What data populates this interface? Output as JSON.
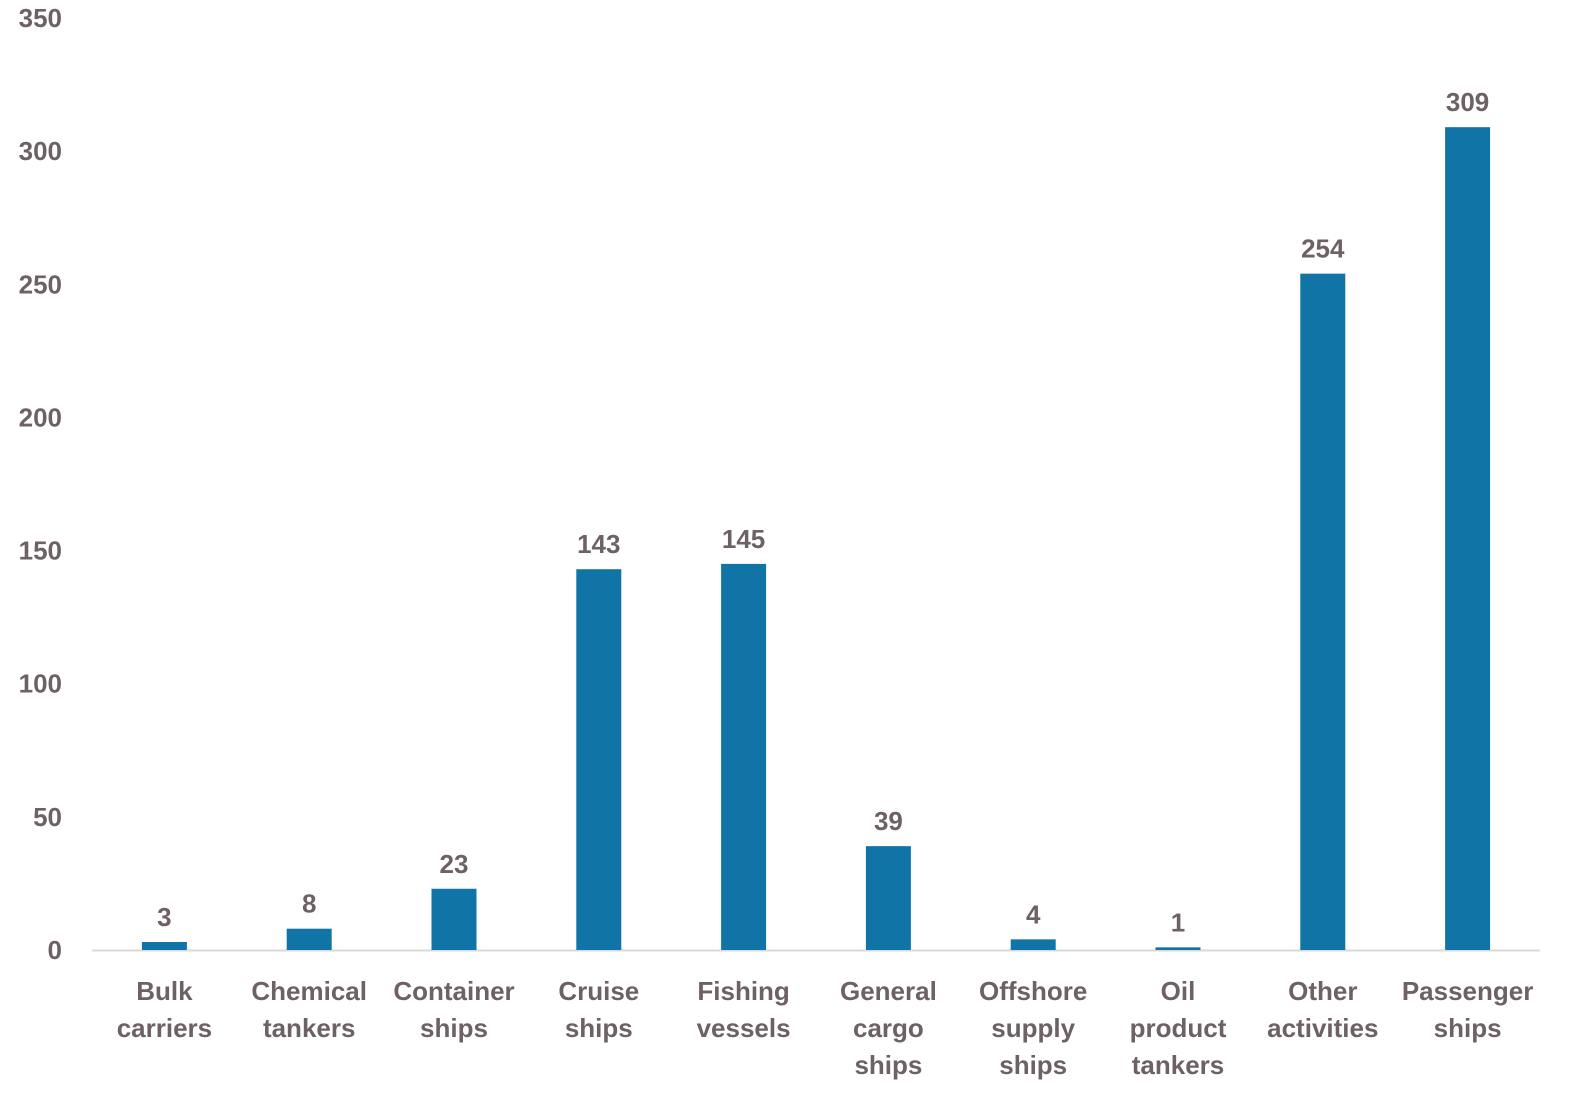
{
  "chart_data": {
    "type": "bar",
    "title": "",
    "xlabel": "",
    "ylabel": "",
    "ylim": [
      0,
      350
    ],
    "yticks": [
      0,
      50,
      100,
      150,
      200,
      250,
      300,
      350
    ],
    "grid": false,
    "legend": "none",
    "categories": [
      [
        "Bulk",
        "carriers"
      ],
      [
        "Chemical",
        "tankers"
      ],
      [
        "Container",
        "ships"
      ],
      [
        "Cruise",
        "ships"
      ],
      [
        "Fishing",
        "vessels"
      ],
      [
        "General",
        "cargo",
        "ships"
      ],
      [
        "Offshore",
        "supply",
        "ships"
      ],
      [
        "Oil",
        "product",
        "tankers"
      ],
      [
        "Other",
        "activities"
      ],
      [
        "Passenger",
        "ships"
      ]
    ],
    "values": [
      3,
      8,
      23,
      143,
      145,
      39,
      4,
      1,
      254,
      309
    ],
    "colors": {
      "bar": "#1174A6",
      "text": "#6E6165",
      "axis": "#D9D9D9"
    }
  }
}
